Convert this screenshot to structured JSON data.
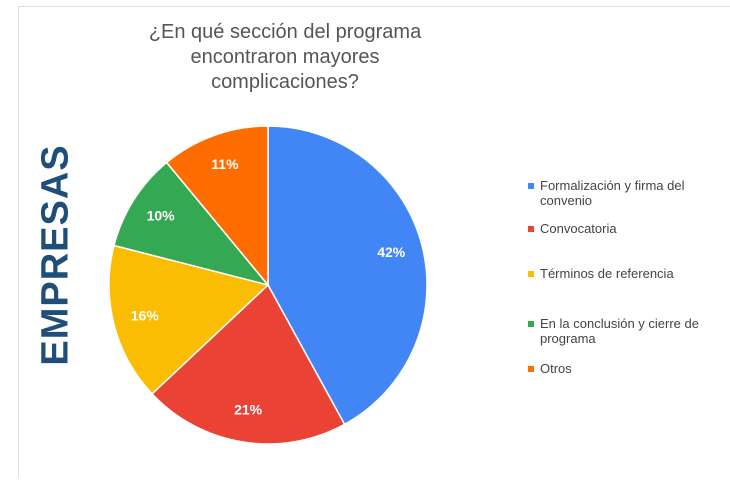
{
  "chart_data": {
    "type": "pie",
    "title": "¿En qué sección del programa encontraron mayores complicaciones?",
    "side_label": "EMPRESAS",
    "categories": [
      "Formalización y firma del convenio",
      "Convocatoria",
      "Términos de referencia",
      "En la conclusión y cierre de programa",
      "Otros"
    ],
    "values": [
      42,
      21,
      16,
      10,
      11
    ],
    "value_labels": [
      "42%",
      "21%",
      "16%",
      "10%",
      "11%"
    ],
    "colors": [
      "#4285f4",
      "#ea4335",
      "#fbbc04",
      "#34a853",
      "#ff6d01"
    ],
    "legend": "right"
  }
}
